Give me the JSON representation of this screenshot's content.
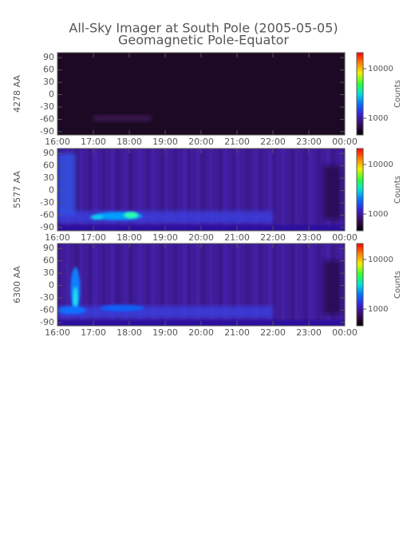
{
  "chart_data": [
    {
      "type": "heatmap",
      "title": "All-Sky Imager at South Pole (2005-05-05)",
      "subtitle": "Geomagnetic Pole-Equator",
      "ylabel": "4278 AA",
      "xlim": [
        16,
        24
      ],
      "xticks": [
        {
          "value": 16,
          "label": "16:00"
        },
        {
          "value": 17,
          "label": "17:00"
        },
        {
          "value": 18,
          "label": "18:00"
        },
        {
          "value": 19,
          "label": "19:00"
        },
        {
          "value": 20,
          "label": "20:00"
        },
        {
          "value": 21,
          "label": "21:00"
        },
        {
          "value": 22,
          "label": "22:00"
        },
        {
          "value": 23,
          "label": "23:00"
        },
        {
          "value": 24,
          "label": "00:00"
        }
      ],
      "ylim": [
        -98,
        102
      ],
      "yticks": [
        90,
        60,
        30,
        0,
        -30,
        -60,
        -90
      ],
      "zlabel": "Counts",
      "zscale": "log",
      "zlim": [
        460,
        21000
      ],
      "zticks": [
        1000,
        10000
      ],
      "colorscale": [
        "#000000",
        "#3a0a5a",
        "#3c1ed0",
        "#0a6cff",
        "#00e0e0",
        "#30ff30",
        "#f0f000",
        "#ff8000",
        "#ff0000"
      ]
    },
    {
      "type": "heatmap",
      "ylabel": "5577 AA",
      "xlim": [
        16,
        24
      ],
      "xticks": [
        {
          "value": 16,
          "label": "16:00"
        },
        {
          "value": 17,
          "label": "17:00"
        },
        {
          "value": 18,
          "label": "18:00"
        },
        {
          "value": 19,
          "label": "19:00"
        },
        {
          "value": 20,
          "label": "20:00"
        },
        {
          "value": 21,
          "label": "21:00"
        },
        {
          "value": 22,
          "label": "22:00"
        },
        {
          "value": 23,
          "label": "23:00"
        },
        {
          "value": 24,
          "label": "00:00"
        }
      ],
      "ylim": [
        -98,
        102
      ],
      "yticks": [
        90,
        60,
        30,
        0,
        -30,
        -60,
        -90
      ],
      "zlabel": "Counts",
      "zscale": "log",
      "zlim": [
        460,
        21000
      ],
      "zticks": [
        1000,
        10000
      ],
      "colorscale": [
        "#000000",
        "#3a0a5a",
        "#3c1ed0",
        "#0a6cff",
        "#00e0e0",
        "#30ff30",
        "#f0f000",
        "#ff8000",
        "#ff0000"
      ]
    },
    {
      "type": "heatmap",
      "ylabel": "6300 AA",
      "xlim": [
        16,
        24
      ],
      "xticks": [
        {
          "value": 16,
          "label": "16:00"
        },
        {
          "value": 17,
          "label": "17:00"
        },
        {
          "value": 18,
          "label": "18:00"
        },
        {
          "value": 19,
          "label": "19:00"
        },
        {
          "value": 20,
          "label": "20:00"
        },
        {
          "value": 21,
          "label": "21:00"
        },
        {
          "value": 22,
          "label": "22:00"
        },
        {
          "value": 23,
          "label": "23:00"
        },
        {
          "value": 24,
          "label": "00:00"
        }
      ],
      "ylim": [
        -98,
        102
      ],
      "yticks": [
        90,
        60,
        30,
        0,
        -30,
        -60,
        -90
      ],
      "zlabel": "Counts",
      "zscale": "log",
      "zlim": [
        460,
        21000
      ],
      "zticks": [
        1000,
        10000
      ],
      "colorscale": [
        "#000000",
        "#3a0a5a",
        "#3c1ed0",
        "#0a6cff",
        "#00e0e0",
        "#30ff30",
        "#f0f000",
        "#ff8000",
        "#ff0000"
      ]
    }
  ]
}
